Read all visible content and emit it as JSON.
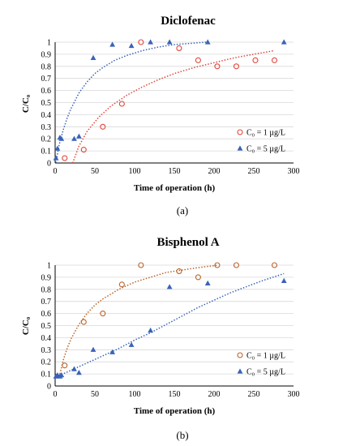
{
  "chart_data": [
    {
      "type": "scatter",
      "panel_label": "(a)",
      "title": "Diclofenac",
      "xlabel": "Time of operation (h)",
      "ylabel": "C/C₀",
      "xlim": [
        0,
        300
      ],
      "ylim": [
        0,
        1
      ],
      "xticks": [
        0,
        50,
        100,
        150,
        200,
        250,
        300
      ],
      "yticks": [
        0,
        0.1,
        0.2,
        0.3,
        0.4,
        0.5,
        0.6,
        0.7,
        0.8,
        0.9,
        1
      ],
      "grid": "horizontal",
      "legend_position": "lower-right",
      "colors": {
        "series1": "#e0463a",
        "series2": "#3a63b8"
      },
      "series": [
        {
          "name": "C₀ = 1 µg/L",
          "marker": "open-circle",
          "x": [
            12,
            36,
            60,
            84,
            108,
            156,
            180,
            204,
            228,
            252,
            276
          ],
          "y": [
            0.04,
            0.11,
            0.3,
            0.49,
            1.0,
            0.95,
            0.85,
            0.8,
            0.8,
            0.85,
            0.85
          ],
          "trend_x": [
            22,
            30,
            40,
            55,
            70,
            90,
            110,
            130,
            150,
            175,
            200,
            225,
            250,
            276
          ],
          "trend_y": [
            0.0,
            0.14,
            0.26,
            0.38,
            0.47,
            0.56,
            0.63,
            0.69,
            0.74,
            0.79,
            0.83,
            0.87,
            0.9,
            0.93
          ]
        },
        {
          "name": "C₀ = 5 µg/L",
          "marker": "filled-triangle",
          "x": [
            1,
            3,
            6,
            8,
            24,
            30,
            48,
            72,
            96,
            120,
            144,
            192,
            288
          ],
          "y": [
            0.04,
            0.12,
            0.21,
            0.2,
            0.2,
            0.22,
            0.87,
            0.98,
            0.97,
            1.0,
            1.0,
            1.0,
            1.0
          ],
          "trend_x": [
            1,
            5,
            10,
            15,
            20,
            30,
            40,
            50,
            60,
            75,
            90,
            110,
            130,
            150,
            170,
            190
          ],
          "trend_y": [
            0.0,
            0.15,
            0.27,
            0.37,
            0.45,
            0.58,
            0.67,
            0.74,
            0.79,
            0.85,
            0.89,
            0.93,
            0.96,
            0.98,
            0.99,
            1.0
          ]
        }
      ]
    },
    {
      "type": "scatter",
      "panel_label": "(b)",
      "title": "Bisphenol A",
      "xlabel": "Time of operation (h)",
      "ylabel": "C/C₀",
      "xlim": [
        0,
        300
      ],
      "ylim": [
        0,
        1
      ],
      "xticks": [
        0,
        50,
        100,
        150,
        200,
        250,
        300
      ],
      "yticks": [
        0,
        0.1,
        0.2,
        0.3,
        0.4,
        0.5,
        0.6,
        0.7,
        0.8,
        0.9,
        1
      ],
      "grid": "horizontal",
      "legend_position": "lower-right",
      "colors": {
        "series1": "#b8632a",
        "series2": "#3a63b8"
      },
      "series": [
        {
          "name": "C₀ = 1 µg/L",
          "marker": "open-circle",
          "x": [
            12,
            36,
            60,
            84,
            108,
            156,
            180,
            204,
            228,
            276
          ],
          "y": [
            0.17,
            0.53,
            0.6,
            0.84,
            1.0,
            0.95,
            0.9,
            1.0,
            1.0,
            1.0
          ],
          "trend_x": [
            6,
            10,
            15,
            20,
            30,
            40,
            50,
            60,
            80,
            100,
            120,
            140,
            160,
            180,
            205
          ],
          "trend_y": [
            0.1,
            0.21,
            0.31,
            0.39,
            0.51,
            0.6,
            0.67,
            0.72,
            0.8,
            0.86,
            0.9,
            0.94,
            0.96,
            0.98,
            1.0
          ]
        },
        {
          "name": "C₀ = 5 µg/L",
          "marker": "filled-triangle",
          "x": [
            1,
            3,
            6,
            8,
            24,
            30,
            48,
            72,
            96,
            120,
            144,
            192,
            288
          ],
          "y": [
            0.08,
            0.09,
            0.08,
            0.09,
            0.14,
            0.11,
            0.3,
            0.28,
            0.34,
            0.46,
            0.82,
            0.85,
            0.87
          ],
          "trend_x": [
            1,
            10,
            20,
            30,
            40,
            60,
            80,
            100,
            120,
            140,
            160,
            180,
            200,
            220,
            240,
            260,
            288
          ],
          "trend_y": [
            0.08,
            0.1,
            0.13,
            0.16,
            0.19,
            0.25,
            0.31,
            0.38,
            0.44,
            0.51,
            0.58,
            0.65,
            0.71,
            0.77,
            0.82,
            0.87,
            0.93
          ]
        }
      ]
    }
  ]
}
